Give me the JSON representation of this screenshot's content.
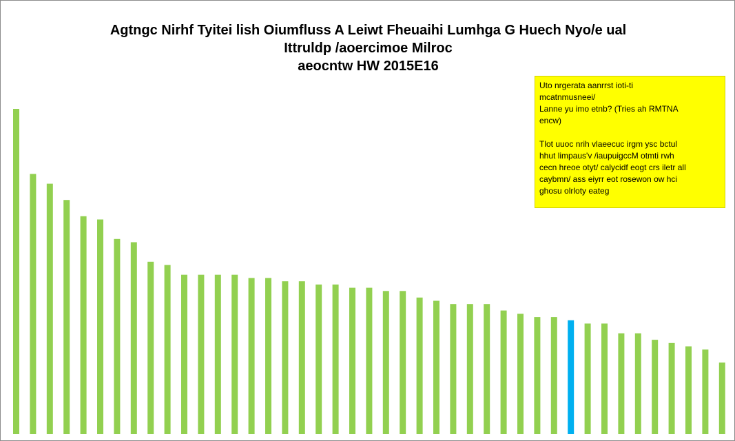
{
  "chart_data": {
    "type": "bar",
    "title": [
      "Agtngc Nirhf Tyitei lish Oiumfluss A Leiwt Fheuaihi Lumhga G Huech Nyo/e ual",
      "Ittruldp /aoercimoe Milroc",
      "aeocntw HW 2015E16"
    ],
    "values": [
      100,
      80,
      77,
      72,
      67,
      66,
      60,
      59,
      53,
      52,
      49,
      49,
      49,
      49,
      48,
      48,
      47,
      47,
      46,
      46,
      45,
      45,
      44,
      44,
      42,
      41,
      40,
      40,
      40,
      38,
      37,
      36,
      36,
      35,
      34,
      34,
      31,
      31,
      29,
      28,
      27,
      26,
      22
    ],
    "highlight_index": 33,
    "colors": {
      "bar": "#92d050",
      "highlight": "#00b0f0"
    },
    "ylim": [
      0,
      100
    ],
    "xlabel": "",
    "ylabel": "",
    "grid": false,
    "annotation": {
      "paragraphs": [
        [
          "Uto nrgerata aanrrst ioti-ti",
          "mcatnmusneei/",
          "Lanne yu imo etnb? (Tries ah RMTNA",
          "encw)"
        ],
        [
          "Tlot uuoc nrih vlaeecuc irgm ysc bctul",
          "hhut limpaus'v /iaupuigccM otmti  rwh",
          "cecn hreoe otyt/ calycidf eogt  crs iletr all",
          "caybmn/ ass eiyrr eot rosewon ow   hci",
          "ghosu olrloty eateg"
        ]
      ],
      "background": "#ffff00"
    }
  }
}
